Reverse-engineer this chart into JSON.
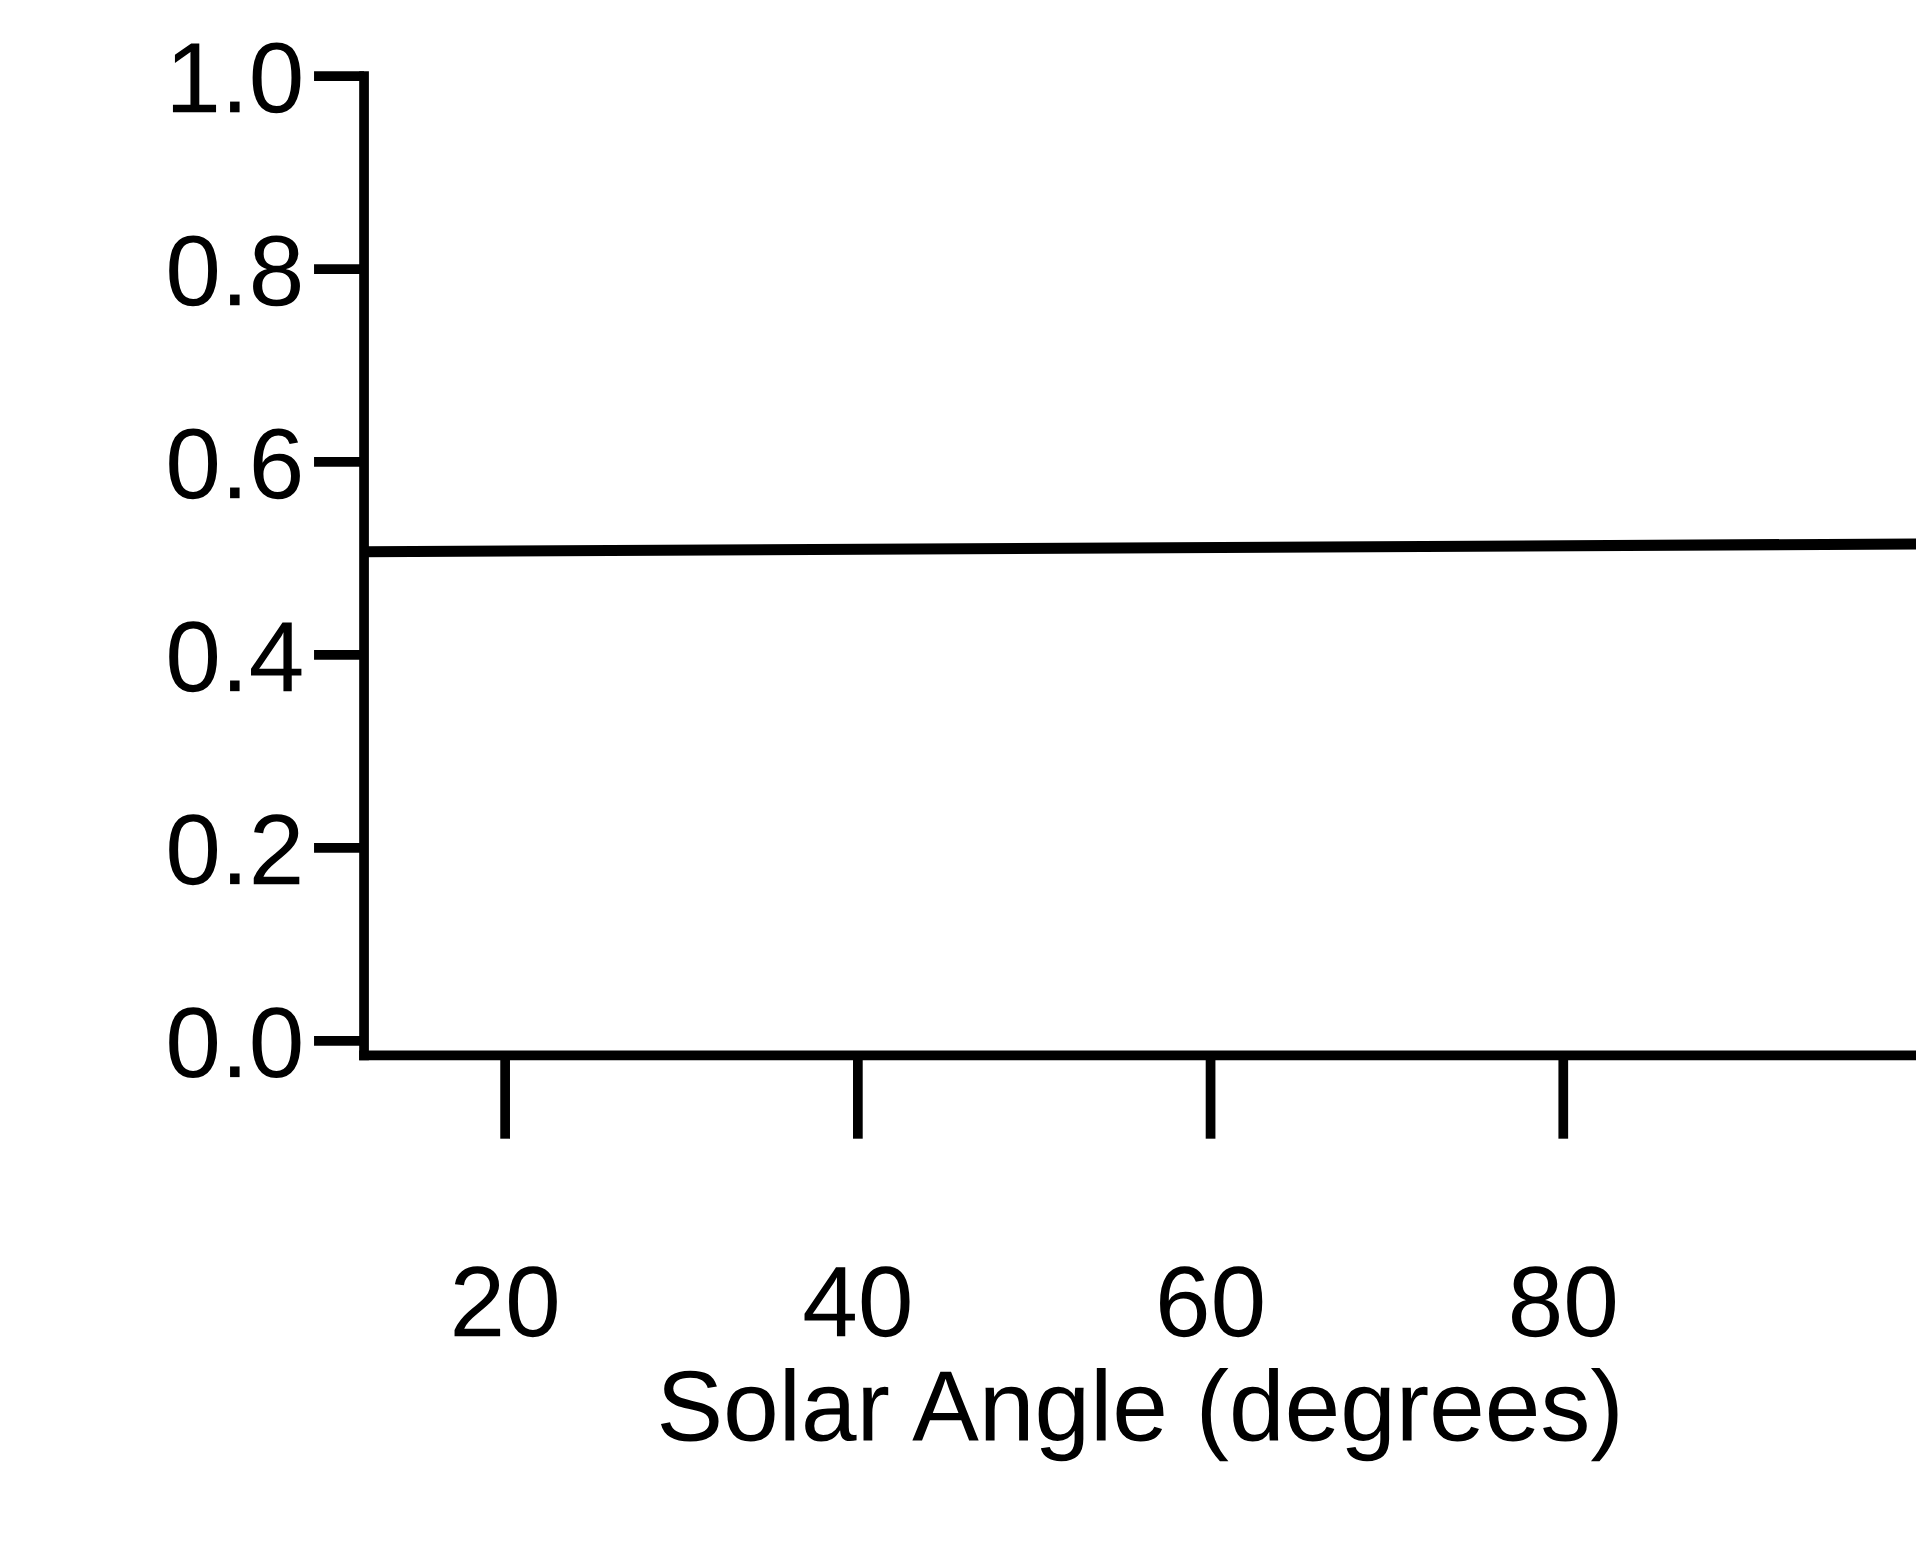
{
  "chart_data": {
    "type": "line",
    "xlabel": "Solar Angle (degrees)",
    "x": [
      12,
      100
    ],
    "series": [
      {
        "color": "#000000",
        "values": [
          0.507,
          0.515
        ]
      }
    ],
    "xlim": [
      12,
      100
    ],
    "ylim": [
      -0.015,
      1.0
    ],
    "xticks": [
      20,
      40,
      60,
      80
    ],
    "yticks": [
      {
        "value": 0,
        "label": "0.0"
      },
      {
        "value": 0.2,
        "label": "0.2"
      },
      {
        "value": 0.4,
        "label": "0.4"
      },
      {
        "value": 0.6,
        "label": "0.6"
      },
      {
        "value": 0.8,
        "label": "0.8"
      },
      {
        "value": 1,
        "label": "1.0"
      }
    ],
    "grid": false,
    "marker": "none",
    "line_style": "solid"
  }
}
